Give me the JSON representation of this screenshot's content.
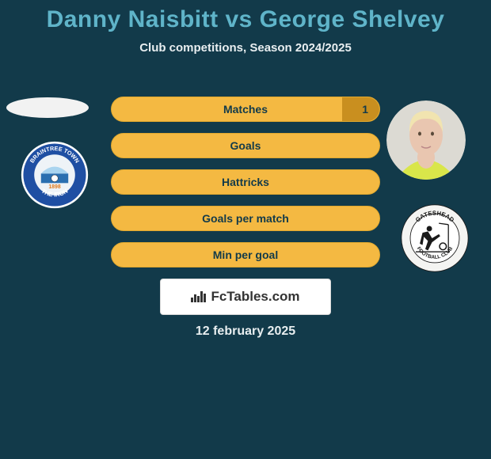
{
  "background_color": "#123a4a",
  "title": {
    "text": "Danny Naisbitt vs George Shelvey",
    "fontsize": 30,
    "color": "#5fb4c9"
  },
  "subtitle": {
    "text": "Club competitions, Season 2024/2025",
    "fontsize": 15,
    "color": "#e8eef0"
  },
  "bars": {
    "bar_bg": "#f4b942",
    "bar_border": "#e0a82e",
    "label_color": "#123a4a",
    "label_fontsize": 14,
    "right_fill_color": "#c98f1f",
    "items": [
      {
        "label": "Matches",
        "right_value": "1",
        "right_fill_pct": 14
      },
      {
        "label": "Goals",
        "right_value": "",
        "right_fill_pct": 0
      },
      {
        "label": "Hattricks",
        "right_value": "",
        "right_fill_pct": 0
      },
      {
        "label": "Goals per match",
        "right_value": "",
        "right_fill_pct": 0
      },
      {
        "label": "Min per goal",
        "right_value": "",
        "right_fill_pct": 0
      }
    ]
  },
  "left_avatar": {
    "bg": "#f2f2f2"
  },
  "right_avatar": {
    "bg": "#dcdad3",
    "hair": "#f1e4b0",
    "skin": "#e9c6b0",
    "shirt": "#d9e64a"
  },
  "left_club": {
    "name": "Braintree Town",
    "ring_outer": "#ffffff",
    "ring_inner": "#1f4fa3",
    "center": "#eef3f7",
    "text_color": "#ffffff",
    "top_text": "BRAINTREE TOWN",
    "bottom_text": "THE IRON",
    "year": "1898",
    "year_color": "#e07a1a"
  },
  "right_club": {
    "name": "Gateshead",
    "ring_outer": "#f4f4f2",
    "ring_inner": "#ffffff",
    "stroke": "#1a1a1a",
    "top_text": "GATESHEAD",
    "bottom_text": "FOOTBALL CLUB"
  },
  "logo": {
    "text": "FcTables.com"
  },
  "date": {
    "text": "12 february 2025",
    "fontsize": 16,
    "color": "#e8eef0"
  }
}
